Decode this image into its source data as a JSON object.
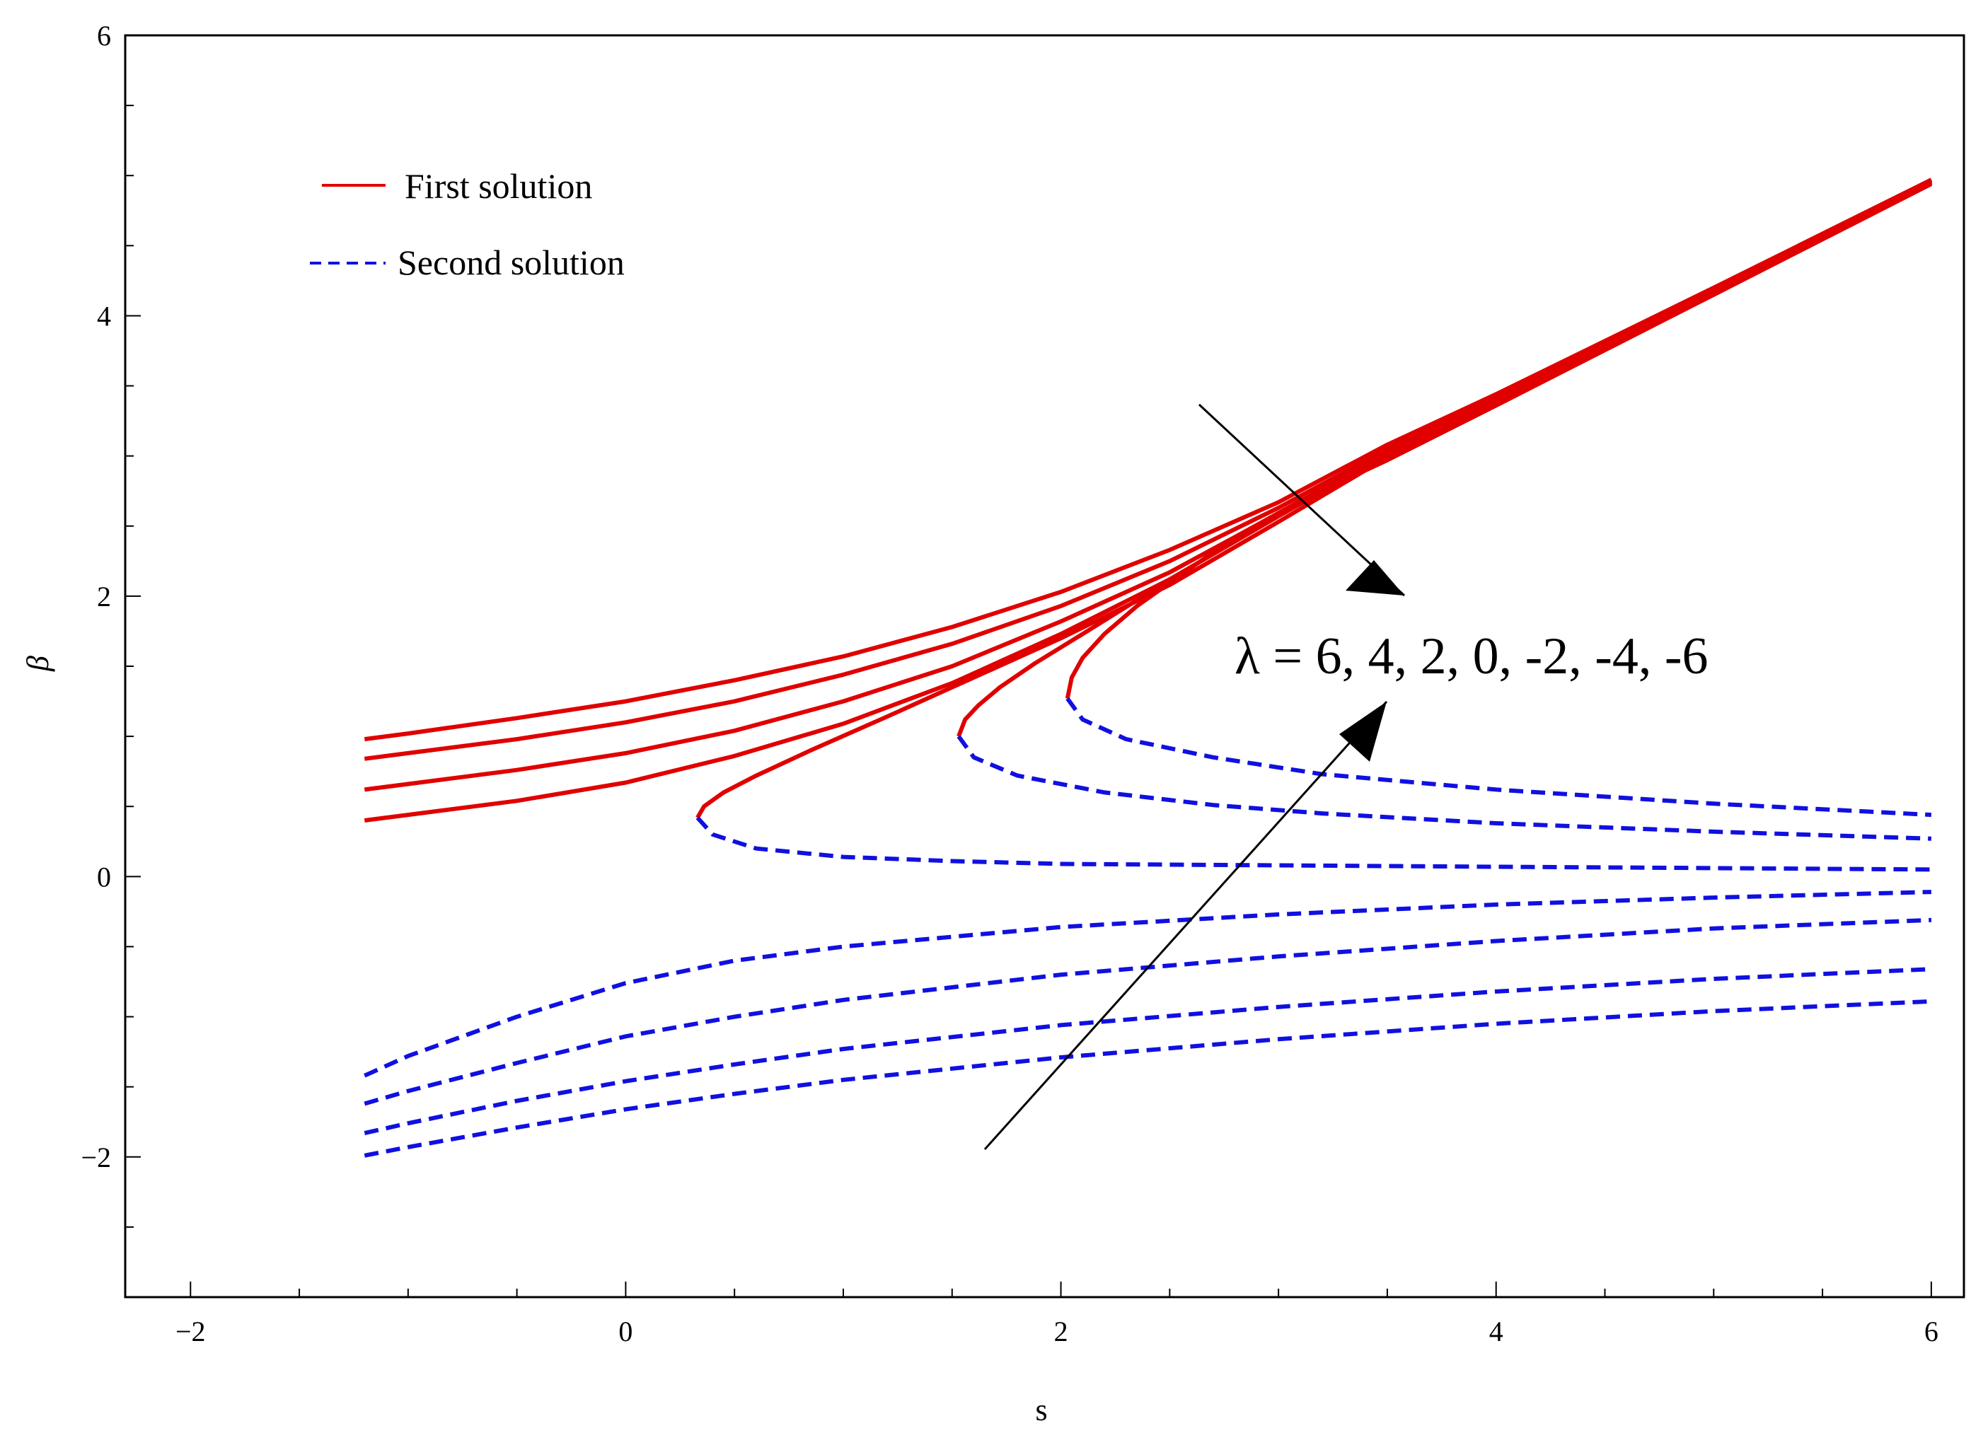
{
  "chart_data": {
    "type": "line",
    "title": "",
    "xlabel": "s",
    "ylabel": "β",
    "xlim": [
      -2.3,
      6.15
    ],
    "ylim": [
      -3,
      6
    ],
    "x_ticks": [
      -2,
      0,
      2,
      4,
      6
    ],
    "x_tick_labels": [
      "−2",
      "0",
      "2",
      "4",
      "6"
    ],
    "y_ticks": [
      -2,
      0,
      2,
      4,
      6
    ],
    "y_tick_labels": [
      "−2",
      "0",
      "2",
      "4",
      "6"
    ],
    "grid": false,
    "legend_position": "top-left",
    "legend": [
      {
        "label": "First solution",
        "style": "solid",
        "color": "#e00000"
      },
      {
        "label": "Second solution",
        "style": "dashed",
        "color": "#1010e0"
      }
    ],
    "annotation": {
      "text": "λ = 6, 4, 2, 0, -2, -4, -6"
    },
    "series": [
      {
        "group": "first",
        "x": [
          -1.2,
          -1,
          -0.5,
          0,
          0.5,
          1,
          1.5,
          2,
          2.5,
          3,
          3.5,
          4,
          5,
          6
        ],
        "y": [
          0.98,
          1.02,
          1.13,
          1.25,
          1.4,
          1.57,
          1.78,
          2.03,
          2.33,
          2.67,
          3.08,
          3.44,
          4.2,
          4.97
        ]
      },
      {
        "group": "first",
        "x": [
          -1.2,
          -1,
          -0.5,
          0,
          0.5,
          1,
          1.5,
          2,
          2.5,
          3,
          3.5,
          4,
          5,
          6
        ],
        "y": [
          0.84,
          0.88,
          0.98,
          1.1,
          1.25,
          1.44,
          1.66,
          1.93,
          2.25,
          2.63,
          3.05,
          3.42,
          4.19,
          4.97
        ]
      },
      {
        "group": "first",
        "x": [
          -1.2,
          -1,
          -0.5,
          0,
          0.5,
          1,
          1.5,
          2,
          2.5,
          3,
          3.5,
          4,
          5,
          6
        ],
        "y": [
          0.62,
          0.66,
          0.76,
          0.88,
          1.04,
          1.25,
          1.5,
          1.82,
          2.17,
          2.59,
          3.03,
          3.4,
          4.18,
          4.96
        ]
      },
      {
        "group": "first",
        "x": [
          -1.2,
          -1,
          -0.5,
          0,
          0.5,
          1,
          1.5,
          2,
          2.5,
          3,
          3.5,
          4,
          5,
          6
        ],
        "y": [
          0.4,
          0.44,
          0.54,
          0.67,
          0.86,
          1.09,
          1.38,
          1.73,
          2.12,
          2.57,
          3.01,
          3.39,
          4.17,
          4.96
        ]
      },
      {
        "group": "first",
        "x": [
          0.33,
          0.36,
          0.45,
          0.6,
          0.85,
          1.2,
          1.6,
          2.0,
          2.5,
          3,
          3.5,
          4,
          5,
          6
        ],
        "y": [
          0.42,
          0.5,
          0.6,
          0.72,
          0.9,
          1.14,
          1.42,
          1.7,
          2.08,
          2.53,
          2.99,
          3.38,
          4.16,
          4.95
        ]
      },
      {
        "group": "first",
        "x": [
          1.53,
          1.56,
          1.62,
          1.72,
          1.88,
          2.1,
          2.4,
          2.75,
          3.1,
          3.5,
          4,
          5,
          6
        ],
        "y": [
          1.0,
          1.12,
          1.22,
          1.35,
          1.52,
          1.73,
          2.02,
          2.35,
          2.68,
          2.98,
          3.37,
          4.15,
          4.95
        ]
      },
      {
        "group": "first",
        "x": [
          2.03,
          2.05,
          2.1,
          2.2,
          2.35,
          2.55,
          2.8,
          3.1,
          3.5,
          4,
          5,
          6
        ],
        "y": [
          1.27,
          1.42,
          1.56,
          1.73,
          1.93,
          2.15,
          2.42,
          2.68,
          2.97,
          3.36,
          4.15,
          4.94
        ]
      },
      {
        "group": "second",
        "x": [
          0.33,
          0.4,
          0.6,
          1,
          1.5,
          2,
          3,
          4,
          5,
          6
        ],
        "y": [
          0.42,
          0.3,
          0.2,
          0.14,
          0.11,
          0.09,
          0.08,
          0.07,
          0.06,
          0.05
        ]
      },
      {
        "group": "second",
        "x": [
          1.53,
          1.6,
          1.8,
          2.2,
          2.7,
          3.2,
          4,
          5,
          6
        ],
        "y": [
          1.0,
          0.85,
          0.72,
          0.6,
          0.51,
          0.45,
          0.38,
          0.32,
          0.27
        ]
      },
      {
        "group": "second",
        "x": [
          2.03,
          2.1,
          2.3,
          2.7,
          3.2,
          4,
          5,
          6
        ],
        "y": [
          1.27,
          1.12,
          0.98,
          0.85,
          0.73,
          0.62,
          0.52,
          0.44
        ]
      },
      {
        "group": "second",
        "x": [
          -1.2,
          -1,
          -0.5,
          0,
          0.5,
          1,
          2,
          3,
          4,
          5,
          6
        ],
        "y": [
          -1.42,
          -1.28,
          -1.0,
          -0.76,
          -0.6,
          -0.5,
          -0.36,
          -0.27,
          -0.2,
          -0.15,
          -0.11
        ]
      },
      {
        "group": "second",
        "x": [
          -1.2,
          -1,
          -0.5,
          0,
          0.5,
          1,
          2,
          3,
          4,
          5,
          6
        ],
        "y": [
          -1.62,
          -1.53,
          -1.33,
          -1.14,
          -1.0,
          -0.88,
          -0.7,
          -0.57,
          -0.46,
          -0.37,
          -0.31
        ]
      },
      {
        "group": "second",
        "x": [
          -1.2,
          -1,
          -0.5,
          0,
          0.5,
          1,
          2,
          3,
          4,
          5,
          6
        ],
        "y": [
          -1.83,
          -1.76,
          -1.6,
          -1.46,
          -1.34,
          -1.23,
          -1.06,
          -0.93,
          -0.82,
          -0.73,
          -0.66
        ]
      },
      {
        "group": "second",
        "x": [
          -1.2,
          -1,
          -0.5,
          0,
          0.5,
          1,
          2,
          3,
          4,
          5,
          6
        ],
        "y": [
          -1.99,
          -1.93,
          -1.79,
          -1.66,
          -1.55,
          -1.45,
          -1.29,
          -1.16,
          -1.05,
          -0.96,
          -0.89
        ]
      }
    ]
  }
}
